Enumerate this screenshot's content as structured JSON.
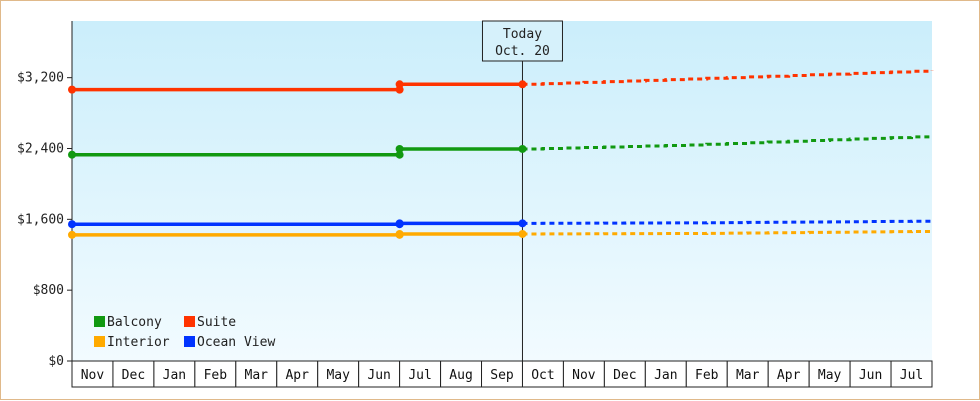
{
  "chart_data": {
    "type": "line",
    "title": "",
    "xlabel": "",
    "ylabel": "",
    "x": [
      "Nov",
      "Dec",
      "Jan",
      "Feb",
      "Mar",
      "Apr",
      "May",
      "Jun",
      "Jul",
      "Aug",
      "Sep",
      "Oct",
      "Nov",
      "Dec",
      "Jan",
      "Feb",
      "Mar",
      "Apr",
      "May",
      "Jun",
      "Jul"
    ],
    "ylim": [
      0,
      3200
    ],
    "y_ticks": [
      {
        "value": 0,
        "label": "$0"
      },
      {
        "value": 800,
        "label": "$800"
      },
      {
        "value": 1600,
        "label": "$1,600"
      },
      {
        "value": 2400,
        "label": "$2,400"
      },
      {
        "value": 3200,
        "label": "$3,200"
      }
    ],
    "today_marker": {
      "x_index": 11,
      "line1": "Today",
      "line2": "Oct. 20"
    },
    "series": [
      {
        "name": "Suite",
        "color": "#ff3300",
        "historical": [
          [
            0,
            3065
          ],
          [
            8,
            3065
          ],
          [
            8,
            3125
          ],
          [
            11,
            3125
          ]
        ],
        "forecast": [
          [
            11,
            3125
          ],
          [
            15,
            3185
          ],
          [
            21,
            3280
          ]
        ]
      },
      {
        "name": "Balcony",
        "color": "#119911",
        "historical": [
          [
            0,
            2330
          ],
          [
            8,
            2330
          ],
          [
            8,
            2395
          ],
          [
            11,
            2395
          ]
        ],
        "forecast": [
          [
            11,
            2395
          ],
          [
            15,
            2440
          ],
          [
            21,
            2540
          ]
        ]
      },
      {
        "name": "Ocean View",
        "color": "#0033ff",
        "historical": [
          [
            0,
            1545
          ],
          [
            8,
            1545
          ],
          [
            8,
            1555
          ],
          [
            11,
            1555
          ]
        ],
        "forecast": [
          [
            11,
            1555
          ],
          [
            15,
            1560
          ],
          [
            21,
            1580
          ]
        ]
      },
      {
        "name": "Interior",
        "color": "#ffaa00",
        "historical": [
          [
            0,
            1425
          ],
          [
            8,
            1425
          ],
          [
            8,
            1435
          ],
          [
            11,
            1435
          ]
        ],
        "forecast": [
          [
            11,
            1435
          ],
          [
            15,
            1440
          ],
          [
            21,
            1465
          ]
        ]
      }
    ],
    "legend": {
      "placement": "bottom-left",
      "rows": [
        [
          "Balcony",
          "Suite"
        ],
        [
          "Interior",
          "Ocean View"
        ]
      ]
    },
    "grid": false
  }
}
